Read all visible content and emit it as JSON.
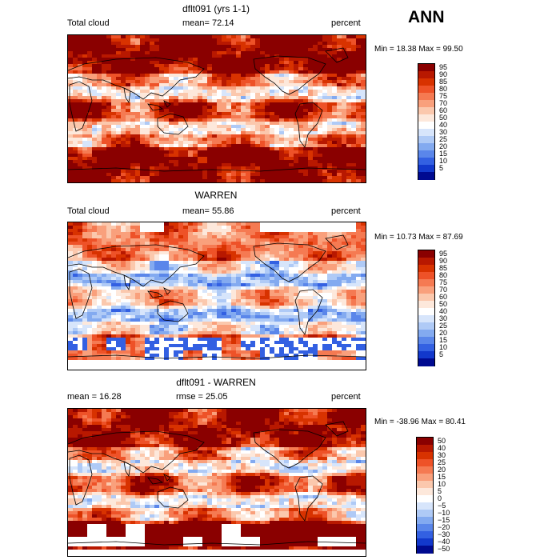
{
  "season": "ANN",
  "panels": [
    {
      "title": "dflt091 (yrs 1-1)",
      "left_label": "Total cloud",
      "stat1": "mean=  72.14",
      "stat2": "",
      "units": "percent",
      "minmax": "Min =  18.38 Max =  99.50",
      "colorbar": [
        {
          "label": "95",
          "color": "#8a0000"
        },
        {
          "label": "90",
          "color": "#b81800"
        },
        {
          "label": "85",
          "color": "#d83200"
        },
        {
          "label": "80",
          "color": "#ee5228"
        },
        {
          "label": "75",
          "color": "#f57a52"
        },
        {
          "label": "70",
          "color": "#f9a07c"
        },
        {
          "label": "60",
          "color": "#fbc8ad"
        },
        {
          "label": "50",
          "color": "#fde8db"
        },
        {
          "label": "40",
          "color": "#ffffff"
        },
        {
          "label": "30",
          "color": "#d7e5fb"
        },
        {
          "label": "25",
          "color": "#afcaf6"
        },
        {
          "label": "20",
          "color": "#83aaf0"
        },
        {
          "label": "15",
          "color": "#5a86ea"
        },
        {
          "label": "10",
          "color": "#3360e2"
        },
        {
          "label": "5",
          "color": "#1238cc"
        },
        {
          "label": "",
          "color": "#000a90"
        }
      ]
    },
    {
      "title": "WARREN",
      "left_label": "Total cloud",
      "stat1": "mean=  55.86",
      "stat2": "",
      "units": "percent",
      "minmax": "Min =  10.73 Max =  87.69",
      "colorbar": [
        {
          "label": "95",
          "color": "#8a0000"
        },
        {
          "label": "90",
          "color": "#b81800"
        },
        {
          "label": "85",
          "color": "#d83200"
        },
        {
          "label": "80",
          "color": "#ee5228"
        },
        {
          "label": "75",
          "color": "#f57a52"
        },
        {
          "label": "70",
          "color": "#f9a07c"
        },
        {
          "label": "60",
          "color": "#fbc8ad"
        },
        {
          "label": "50",
          "color": "#fde8db"
        },
        {
          "label": "40",
          "color": "#ffffff"
        },
        {
          "label": "30",
          "color": "#d7e5fb"
        },
        {
          "label": "25",
          "color": "#afcaf6"
        },
        {
          "label": "20",
          "color": "#83aaf0"
        },
        {
          "label": "15",
          "color": "#5a86ea"
        },
        {
          "label": "10",
          "color": "#3360e2"
        },
        {
          "label": "5",
          "color": "#1238cc"
        },
        {
          "label": "",
          "color": "#000a90"
        }
      ]
    },
    {
      "title": "dflt091 - WARREN",
      "left_label": "mean =  16.28",
      "stat1": "rmse =  25.05",
      "stat2": "",
      "units": "percent",
      "minmax": "Min = -38.96 Max =  80.41",
      "colorbar": [
        {
          "label": "50",
          "color": "#8a0000"
        },
        {
          "label": "40",
          "color": "#b81800"
        },
        {
          "label": "30",
          "color": "#d83200"
        },
        {
          "label": "25",
          "color": "#ee5228"
        },
        {
          "label": "20",
          "color": "#f57a52"
        },
        {
          "label": "15",
          "color": "#f9a07c"
        },
        {
          "label": "10",
          "color": "#fbc8ad"
        },
        {
          "label": "5",
          "color": "#fde8db"
        },
        {
          "label": "0",
          "color": "#ffffff"
        },
        {
          "label": "−5",
          "color": "#d7e5fb"
        },
        {
          "label": "−10",
          "color": "#afcaf6"
        },
        {
          "label": "−15",
          "color": "#83aaf0"
        },
        {
          "label": "−20",
          "color": "#5a86ea"
        },
        {
          "label": "−30",
          "color": "#3360e2"
        },
        {
          "label": "−40",
          "color": "#1238cc"
        },
        {
          "label": "−50",
          "color": "#000a90"
        }
      ]
    }
  ]
}
